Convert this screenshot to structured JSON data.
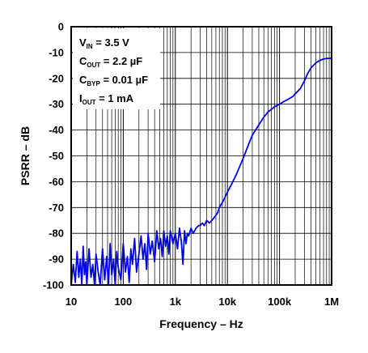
{
  "chart_data": {
    "type": "line",
    "title": "",
    "xlabel": "Frequency – Hz",
    "ylabel": "PSRR – dB",
    "x_scale": "log",
    "xlim": [
      10,
      1000000
    ],
    "ylim": [
      -100,
      0
    ],
    "grid": true,
    "x_ticks": [
      {
        "value": 10,
        "label": "10"
      },
      {
        "value": 100,
        "label": "100"
      },
      {
        "value": 1000,
        "label": "1k"
      },
      {
        "value": 10000,
        "label": "10k"
      },
      {
        "value": 100000,
        "label": "100k"
      },
      {
        "value": 1000000,
        "label": "1M"
      }
    ],
    "y_ticks": [
      {
        "value": 0,
        "label": "0"
      },
      {
        "value": -10,
        "label": "-10"
      },
      {
        "value": -20,
        "label": "-20"
      },
      {
        "value": -30,
        "label": "-30"
      },
      {
        "value": -40,
        "label": "-40"
      },
      {
        "value": -50,
        "label": "-50"
      },
      {
        "value": -60,
        "label": "-60"
      },
      {
        "value": -70,
        "label": "-70"
      },
      {
        "value": -80,
        "label": "-80"
      },
      {
        "value": -90,
        "label": "-90"
      },
      {
        "value": -100,
        "label": "-100"
      }
    ],
    "annotations": [
      {
        "main": "V",
        "sub": "IN",
        "rest": " = 3.5 V"
      },
      {
        "main": "C",
        "sub": "OUT",
        "rest": " = 2.2 µF"
      },
      {
        "main": "C",
        "sub": "BYP",
        "rest": " = 0.01 µF"
      },
      {
        "main": "I",
        "sub": "OUT",
        "rest": " = 1 mA"
      }
    ],
    "series": [
      {
        "color": "#0000ee",
        "x": [
          10,
          11,
          12,
          13,
          14,
          15,
          16,
          17,
          18,
          19,
          20,
          22,
          24,
          26,
          28,
          30,
          33,
          36,
          40,
          44,
          48,
          52,
          56,
          60,
          65,
          70,
          75,
          80,
          90,
          100,
          110,
          120,
          130,
          140,
          150,
          165,
          180,
          200,
          220,
          240,
          260,
          280,
          300,
          330,
          360,
          400,
          440,
          480,
          520,
          560,
          600,
          650,
          700,
          750,
          800,
          900,
          1000,
          1100,
          1200,
          1300,
          1400,
          1500,
          1600,
          1700,
          1800,
          2000,
          2200,
          2500,
          2800,
          3000,
          3300,
          3600,
          4000,
          4500,
          5000,
          5500,
          6000,
          6500,
          7000,
          8000,
          9000,
          10000,
          12000,
          15000,
          20000,
          25000,
          30000,
          40000,
          50000,
          60000,
          70000,
          80000,
          100000,
          120000,
          150000,
          180000,
          200000,
          250000,
          300000,
          350000,
          400000,
          500000,
          600000,
          700000,
          800000,
          1000000
        ],
        "y": [
          -100,
          -92,
          -99,
          -87,
          -97,
          -90,
          -100,
          -85,
          -96,
          -91,
          -100,
          -86,
          -97,
          -92,
          -100,
          -88,
          -95,
          -100,
          -86,
          -98,
          -89,
          -100,
          -84,
          -96,
          -90,
          -100,
          -87,
          -93,
          -98,
          -84,
          -95,
          -89,
          -99,
          -86,
          -92,
          -82,
          -95,
          -88,
          -81,
          -90,
          -84,
          -94,
          -80,
          -88,
          -83,
          -91,
          -79,
          -86,
          -82,
          -89,
          -79,
          -85,
          -81,
          -88,
          -79,
          -84,
          -80,
          -86,
          -78,
          -83,
          -92,
          -79,
          -84,
          -80,
          -81,
          -78,
          -80,
          -78,
          -77,
          -77,
          -76,
          -77,
          -75,
          -76,
          -75,
          -74,
          -73,
          -72,
          -70,
          -68,
          -66,
          -64,
          -61,
          -57,
          -51,
          -46,
          -42,
          -38,
          -35,
          -33,
          -32,
          -31,
          -30,
          -29,
          -28,
          -27,
          -26,
          -24,
          -21,
          -18,
          -16,
          -14,
          -13,
          -12.5,
          -12.3,
          -12.2
        ]
      }
    ]
  }
}
